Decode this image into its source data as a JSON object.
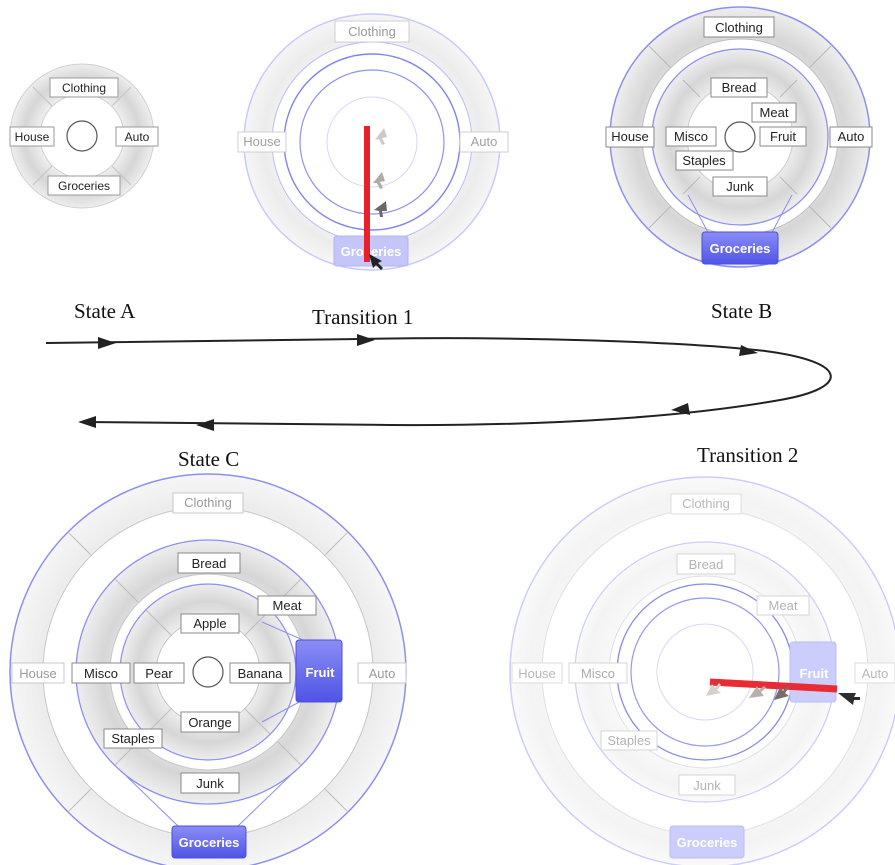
{
  "captions": {
    "state_a": "State A",
    "transition_1": "Transition 1",
    "state_b": "State B",
    "state_c": "State C",
    "transition_2": "Transition 2"
  },
  "menus": {
    "state_a": {
      "outer_ring": {
        "top": "Clothing",
        "right": "Auto",
        "bottom": "Groceries",
        "left": "House"
      }
    },
    "transition_1": {
      "outer_ring": {
        "top": "Clothing",
        "right": "Auto",
        "bottom": "Groceries",
        "left": "House"
      },
      "highlighted": "Groceries"
    },
    "state_b": {
      "outer_ring": {
        "top": "Clothing",
        "right": "Auto",
        "bottom": "Groceries",
        "left": "House"
      },
      "inner_ring": {
        "top": "Bread",
        "top_right": "Meat",
        "right": "Fruit",
        "bottom": "Junk",
        "bottom_left": "Staples",
        "left": "Misco"
      },
      "selected": "Groceries"
    },
    "state_c": {
      "outer_ring": {
        "top": "Clothing",
        "right": "Auto",
        "bottom": "Groceries",
        "left": "House"
      },
      "middle_ring": {
        "top": "Bread",
        "top_right": "Meat",
        "right": "Fruit",
        "bottom": "Junk",
        "bottom_left": "Staples",
        "left": "Misco"
      },
      "inner_ring": {
        "top": "Apple",
        "right": "Banana",
        "bottom": "Orange",
        "left": "Pear"
      },
      "selected": [
        "Groceries",
        "Fruit"
      ]
    },
    "transition_2": {
      "outer_ring": {
        "top": "Clothing",
        "right": "Auto",
        "bottom": "Groceries",
        "left": "House"
      },
      "middle_ring": {
        "top": "Bread",
        "top_right": "Meat",
        "right": "Fruit",
        "bottom": "Junk",
        "bottom_left": "Staples",
        "left": "Misco"
      },
      "highlighted": "Fruit"
    }
  },
  "colors": {
    "selected_fill": "#6a6ef0",
    "ghost_selected_fill": "#c9cbfa",
    "ring_outline": "#8b8ff0",
    "stroke_line": "#e8202a",
    "flow_line": "#222222"
  }
}
